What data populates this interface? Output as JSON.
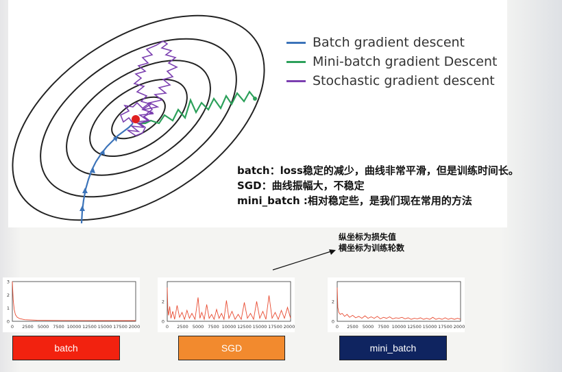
{
  "legend": [
    {
      "label": "Batch gradient descent",
      "color": "#3b73b9"
    },
    {
      "label": "Mini-batch gradient Descent",
      "color": "#2ca05a"
    },
    {
      "label": "Stochastic gradient descent",
      "color": "#7b3fb0"
    }
  ],
  "notes": [
    "batch：loss稳定的减少，曲线非常平滑，但是训练时间长。",
    "SGD：曲线振幅大，不稳定",
    "mini_batch :相对稳定些，是我们现在常用的方法"
  ],
  "axis_note": {
    "y_axis": "纵坐标为损失值",
    "x_axis": "横坐标为训练轮数"
  },
  "chart_data": [
    {
      "type": "line",
      "name_label": "batch",
      "x_ticks": [
        0,
        2500,
        5000,
        7500,
        10000,
        12500,
        15000,
        17500,
        20000
      ],
      "y_ticks": [
        0,
        1,
        2,
        3
      ],
      "xlim": [
        0,
        20000
      ],
      "ylim": [
        0,
        3
      ],
      "series": [
        {
          "x": [
            0,
            150,
            300,
            500,
            800,
            1200,
            2000,
            4000,
            8000,
            14000,
            20000
          ],
          "values": [
            3.0,
            1.6,
            0.9,
            0.5,
            0.3,
            0.2,
            0.12,
            0.08,
            0.06,
            0.05,
            0.05
          ]
        }
      ],
      "line_color": "#e8492f"
    },
    {
      "type": "line",
      "name_label": "SGD",
      "x_ticks": [
        0,
        2500,
        5000,
        7500,
        10000,
        12500,
        15000,
        17500,
        20000
      ],
      "y_ticks": [
        0,
        2
      ],
      "xlim": [
        0,
        20000
      ],
      "ylim": [
        0,
        4
      ],
      "series": [
        {
          "x": [
            0,
            100,
            200,
            400,
            600,
            900,
            1200,
            1600,
            2000,
            2400,
            2800,
            3200,
            3600,
            4000,
            4500,
            5000,
            5300,
            5600,
            6000,
            6400,
            6800,
            7200,
            7600,
            8000,
            8400,
            8800,
            9200,
            9600,
            10000,
            10500,
            11000,
            11500,
            12000,
            12500,
            13000,
            13500,
            14000,
            14500,
            15000,
            15500,
            16000,
            16500,
            17000,
            17500,
            18000,
            18500,
            19000,
            19500,
            20000
          ],
          "values": [
            3.4,
            1.2,
            0.6,
            1.5,
            0.3,
            1.0,
            0.2,
            1.6,
            0.4,
            0.9,
            0.2,
            1.1,
            0.3,
            0.8,
            0.2,
            2.4,
            0.3,
            0.9,
            0.2,
            1.7,
            0.3,
            0.7,
            0.2,
            1.2,
            0.3,
            0.8,
            0.2,
            2.1,
            0.3,
            1.0,
            0.2,
            0.7,
            0.2,
            1.9,
            0.3,
            0.8,
            0.2,
            2.0,
            0.3,
            1.0,
            0.2,
            2.6,
            0.3,
            0.9,
            0.2,
            1.1,
            0.3,
            1.4,
            0.3
          ]
        }
      ],
      "line_color": "#e8492f"
    },
    {
      "type": "line",
      "name_label": "mini_batch",
      "x_ticks": [
        0,
        2500,
        5000,
        7500,
        10000,
        12500,
        15000,
        17500,
        20000
      ],
      "y_ticks": [
        0,
        2
      ],
      "xlim": [
        0,
        20000
      ],
      "ylim": [
        0,
        4
      ],
      "series": [
        {
          "x": [
            0,
            100,
            250,
            500,
            800,
            1200,
            1600,
            2000,
            2500,
            3000,
            3500,
            4000,
            4500,
            5000,
            5500,
            6000,
            6500,
            7000,
            7500,
            8000,
            8500,
            9000,
            9500,
            10000,
            10500,
            11000,
            11500,
            12000,
            12500,
            13000,
            13500,
            14000,
            14500,
            15000,
            15500,
            16000,
            16500,
            17000,
            17500,
            18000,
            18500,
            19000,
            19500,
            20000
          ],
          "values": [
            3.4,
            1.4,
            0.9,
            0.7,
            0.8,
            0.5,
            0.7,
            0.4,
            0.6,
            0.35,
            0.5,
            0.3,
            0.55,
            0.3,
            0.45,
            0.3,
            0.5,
            0.25,
            0.4,
            0.3,
            0.45,
            0.25,
            0.35,
            0.3,
            0.4,
            0.25,
            0.35,
            0.2,
            0.3,
            0.25,
            0.35,
            0.2,
            0.3,
            0.2,
            0.4,
            0.2,
            0.3,
            0.2,
            0.35,
            0.2,
            0.3,
            0.2,
            0.3,
            0.2
          ]
        }
      ],
      "line_color": "#e8492f"
    }
  ],
  "boxes": [
    {
      "label": "batch",
      "bg": "#f2220f",
      "fg": "#ffffff"
    },
    {
      "label": "SGD",
      "bg": "#f28a2e",
      "fg": "#ffffff"
    },
    {
      "label": "mini_batch",
      "bg": "#0f2460",
      "fg": "#ffffff"
    }
  ],
  "contour": {
    "ellipses": 5,
    "ellipse_color": "#222222",
    "minimum_color": "#e02020"
  }
}
